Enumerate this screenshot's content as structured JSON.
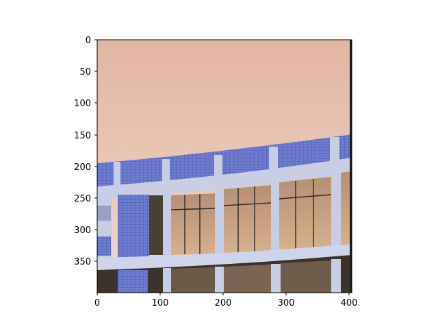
{
  "figure": {
    "background": "#ffffff",
    "image": {
      "description_kind": "photo",
      "subject": "curved multi-storey building facade",
      "colors": {
        "sky_top": "#e2b5a2",
        "sky_bottom": "#f0d6c8",
        "tile_blue": "#5d6cc0",
        "tile_blue_dark": "#3a4796",
        "concrete": "#c8cde6",
        "concrete_shadow": "#9aa0c2",
        "glass_warm": "#caa07c",
        "glass_dark": "#4a3f35",
        "frame_dark": "#2b2a2a"
      }
    },
    "axes": {
      "x_ticks": [
        "0",
        "100",
        "200",
        "300",
        "400"
      ],
      "y_ticks": [
        "0",
        "50",
        "100",
        "150",
        "200",
        "250",
        "300",
        "350"
      ],
      "xlim": [
        0,
        404
      ],
      "ylim": [
        400,
        0
      ]
    }
  }
}
